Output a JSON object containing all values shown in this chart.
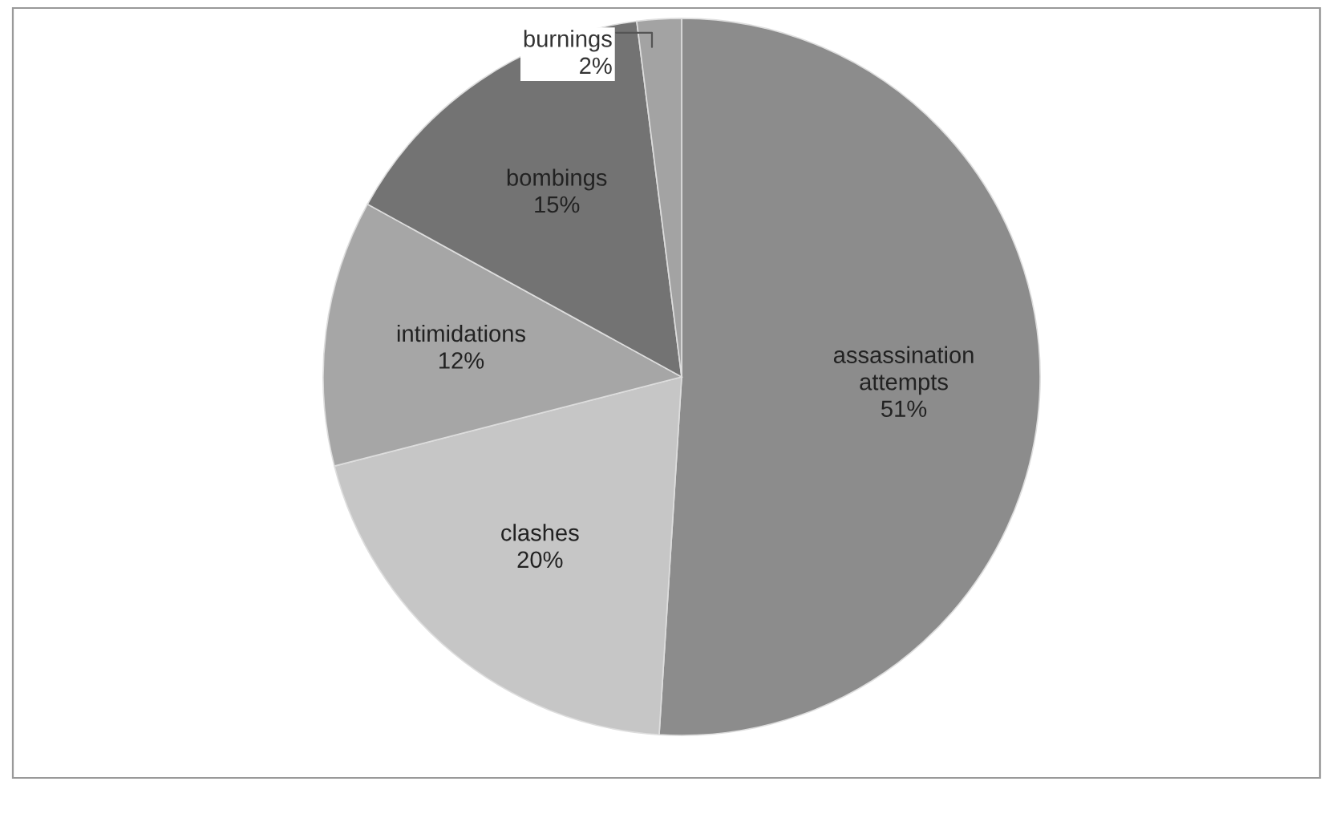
{
  "chart_data": {
    "type": "pie",
    "categories": [
      "assassination\nattempts",
      "clashes",
      "intimidations",
      "bombings",
      "burnings"
    ],
    "values": [
      51,
      20,
      12,
      15,
      2
    ],
    "value_labels": [
      "51%",
      "20%",
      "12%",
      "15%",
      "2%"
    ],
    "colors": [
      "#8c8c8c",
      "#c6c6c6",
      "#a6a6a6",
      "#737373",
      "#a3a3a3"
    ],
    "legend": false
  }
}
